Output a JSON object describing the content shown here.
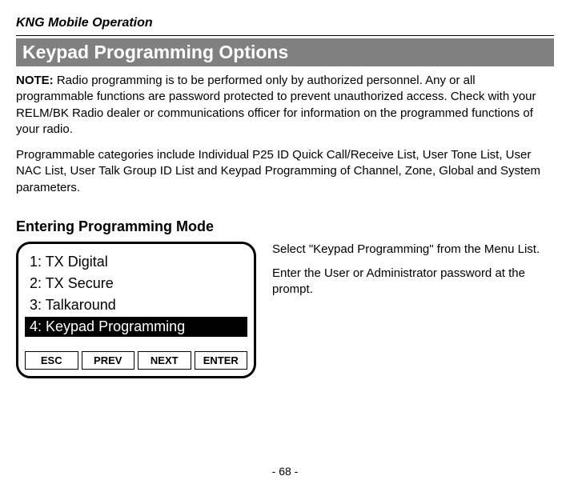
{
  "header": {
    "running_title": "KNG Mobile Operation"
  },
  "section": {
    "title": "Keypad Programming Options"
  },
  "note": {
    "label": "NOTE:",
    "text": " Radio programming is to be performed only by authorized personnel. Any or all programmable functions are password protected to prevent unauthorized access. Check with your RELM/BK Radio dealer or communications officer for information on the programmed functions of your radio."
  },
  "paragraph2": "Programmable categories include Individual P25 ID Quick Call/Receive  List, User Tone List, User NAC List, User Talk Group ID List and Keypad Programming of Channel, Zone, Global and System parameters.",
  "subsection": {
    "title": "Entering Programming Mode"
  },
  "menu": {
    "items": [
      {
        "label": "1: TX Digital",
        "selected": false
      },
      {
        "label": "2: TX Secure",
        "selected": false
      },
      {
        "label": "3: Talkaround",
        "selected": false
      },
      {
        "label": "4: Keypad Programming",
        "selected": true
      }
    ],
    "buttons": {
      "esc": "ESC",
      "prev": "PREV",
      "next": "NEXT",
      "enter": "ENTER"
    }
  },
  "instructions": {
    "p1": "Select \"Keypad Programming\" from the Menu List.",
    "p2": "Enter the User or Administrator password at the prompt."
  },
  "page_number": "- 68 -"
}
